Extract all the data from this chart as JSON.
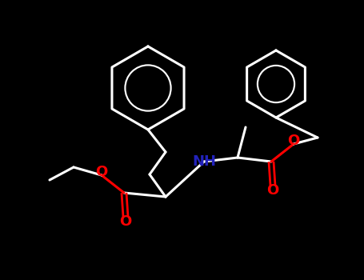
{
  "bg_color": "#000000",
  "bond_color": "#ffffff",
  "O_color": "#ff0000",
  "N_color": "#2222bb",
  "line_width": 2.2,
  "figsize": [
    4.55,
    3.5
  ],
  "dpi": 100,
  "xlim": [
    0,
    455
  ],
  "ylim": [
    0,
    350
  ]
}
